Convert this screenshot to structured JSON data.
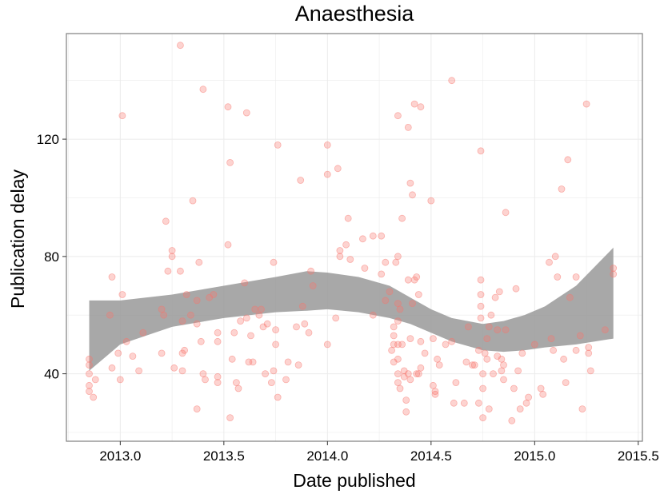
{
  "chart_data": {
    "type": "scatter",
    "title": "Anaesthesia",
    "xlabel": "Date published",
    "ylabel": "Publication delay",
    "xlim": [
      2012.74,
      2015.52
    ],
    "ylim": [
      17,
      156
    ],
    "x_ticks": [
      2013.0,
      2013.5,
      2014.0,
      2014.5,
      2015.0,
      2015.5
    ],
    "x_tick_labels": [
      "2013.0",
      "2013.5",
      "2014.0",
      "2014.5",
      "2015.0",
      "2015.5"
    ],
    "y_ticks": [
      40,
      80,
      120
    ],
    "y_tick_labels": [
      "40",
      "80",
      "120"
    ],
    "grid": true,
    "legend": "none",
    "colors": {
      "points": "#f8766d",
      "band": "#999999",
      "panel_border": "#7f7f7f",
      "grid": "#ebebeb"
    },
    "points": [
      [
        2012.85,
        34
      ],
      [
        2012.85,
        36
      ],
      [
        2012.85,
        40
      ],
      [
        2012.85,
        43
      ],
      [
        2012.85,
        45
      ],
      [
        2012.87,
        32
      ],
      [
        2012.88,
        38
      ],
      [
        2012.95,
        60
      ],
      [
        2012.96,
        42
      ],
      [
        2012.96,
        73
      ],
      [
        2012.99,
        47
      ],
      [
        2013.0,
        38
      ],
      [
        2013.01,
        128
      ],
      [
        2013.01,
        67
      ],
      [
        2013.03,
        51
      ],
      [
        2013.06,
        46
      ],
      [
        2013.09,
        41
      ],
      [
        2013.11,
        54
      ],
      [
        2013.2,
        62
      ],
      [
        2013.2,
        47
      ],
      [
        2013.21,
        60
      ],
      [
        2013.22,
        92
      ],
      [
        2013.23,
        75
      ],
      [
        2013.25,
        82
      ],
      [
        2013.25,
        80
      ],
      [
        2013.26,
        42
      ],
      [
        2013.29,
        152
      ],
      [
        2013.29,
        75
      ],
      [
        2013.3,
        47
      ],
      [
        2013.3,
        41
      ],
      [
        2013.3,
        58
      ],
      [
        2013.31,
        48
      ],
      [
        2013.32,
        67
      ],
      [
        2013.34,
        60
      ],
      [
        2013.35,
        99
      ],
      [
        2013.37,
        57
      ],
      [
        2013.37,
        65
      ],
      [
        2013.37,
        28
      ],
      [
        2013.38,
        78
      ],
      [
        2013.39,
        51
      ],
      [
        2013.4,
        137
      ],
      [
        2013.4,
        40
      ],
      [
        2013.41,
        38
      ],
      [
        2013.43,
        66
      ],
      [
        2013.45,
        67
      ],
      [
        2013.47,
        51
      ],
      [
        2013.47,
        39
      ],
      [
        2013.47,
        37
      ],
      [
        2013.47,
        54
      ],
      [
        2013.52,
        131
      ],
      [
        2013.52,
        84
      ],
      [
        2013.53,
        112
      ],
      [
        2013.53,
        25
      ],
      [
        2013.54,
        45
      ],
      [
        2013.55,
        54
      ],
      [
        2013.56,
        37
      ],
      [
        2013.57,
        35
      ],
      [
        2013.58,
        58
      ],
      [
        2013.6,
        71
      ],
      [
        2013.61,
        129
      ],
      [
        2013.61,
        59
      ],
      [
        2013.62,
        44
      ],
      [
        2013.63,
        53
      ],
      [
        2013.64,
        44
      ],
      [
        2013.65,
        62
      ],
      [
        2013.67,
        60
      ],
      [
        2013.68,
        62
      ],
      [
        2013.69,
        56
      ],
      [
        2013.7,
        40
      ],
      [
        2013.71,
        57
      ],
      [
        2013.73,
        37
      ],
      [
        2013.74,
        41
      ],
      [
        2013.74,
        78
      ],
      [
        2013.75,
        50
      ],
      [
        2013.75,
        55
      ],
      [
        2013.76,
        32
      ],
      [
        2013.76,
        118
      ],
      [
        2013.8,
        38
      ],
      [
        2013.81,
        44
      ],
      [
        2013.85,
        56
      ],
      [
        2013.86,
        43
      ],
      [
        2013.87,
        106
      ],
      [
        2013.88,
        63
      ],
      [
        2013.89,
        57
      ],
      [
        2013.91,
        54
      ],
      [
        2013.92,
        75
      ],
      [
        2013.93,
        70
      ],
      [
        2014.0,
        118
      ],
      [
        2014.0,
        108
      ],
      [
        2014.0,
        50
      ],
      [
        2014.04,
        59
      ],
      [
        2014.05,
        110
      ],
      [
        2014.06,
        82
      ],
      [
        2014.06,
        80
      ],
      [
        2014.09,
        84
      ],
      [
        2014.1,
        93
      ],
      [
        2014.11,
        79
      ],
      [
        2014.17,
        86
      ],
      [
        2014.18,
        76
      ],
      [
        2014.22,
        87
      ],
      [
        2014.22,
        60
      ],
      [
        2014.26,
        87
      ],
      [
        2014.26,
        74
      ],
      [
        2014.28,
        78
      ],
      [
        2014.28,
        65
      ],
      [
        2014.3,
        68
      ],
      [
        2014.31,
        48
      ],
      [
        2014.32,
        50
      ],
      [
        2014.32,
        53
      ],
      [
        2014.32,
        56
      ],
      [
        2014.32,
        44
      ],
      [
        2014.33,
        78
      ],
      [
        2014.34,
        128
      ],
      [
        2014.34,
        80
      ],
      [
        2014.34,
        64
      ],
      [
        2014.34,
        58
      ],
      [
        2014.34,
        50
      ],
      [
        2014.34,
        45
      ],
      [
        2014.34,
        40
      ],
      [
        2014.34,
        37
      ],
      [
        2014.35,
        35
      ],
      [
        2014.35,
        62
      ],
      [
        2014.36,
        93
      ],
      [
        2014.36,
        50
      ],
      [
        2014.37,
        41
      ],
      [
        2014.37,
        39
      ],
      [
        2014.38,
        31
      ],
      [
        2014.38,
        27
      ],
      [
        2014.39,
        124
      ],
      [
        2014.39,
        72
      ],
      [
        2014.39,
        40
      ],
      [
        2014.4,
        105
      ],
      [
        2014.4,
        52
      ],
      [
        2014.4,
        38
      ],
      [
        2014.41,
        101
      ],
      [
        2014.41,
        64
      ],
      [
        2014.42,
        132
      ],
      [
        2014.42,
        72
      ],
      [
        2014.43,
        40
      ],
      [
        2014.43,
        73
      ],
      [
        2014.44,
        67
      ],
      [
        2014.44,
        40
      ],
      [
        2014.45,
        131
      ],
      [
        2014.45,
        51
      ],
      [
        2014.45,
        42
      ],
      [
        2014.47,
        47
      ],
      [
        2014.5,
        99
      ],
      [
        2014.51,
        36
      ],
      [
        2014.51,
        52
      ],
      [
        2014.52,
        34
      ],
      [
        2014.52,
        33
      ],
      [
        2014.53,
        45
      ],
      [
        2014.54,
        43
      ],
      [
        2014.57,
        50
      ],
      [
        2014.6,
        140
      ],
      [
        2014.6,
        51
      ],
      [
        2014.61,
        30
      ],
      [
        2014.62,
        37
      ],
      [
        2014.66,
        30
      ],
      [
        2014.67,
        44
      ],
      [
        2014.68,
        56
      ],
      [
        2014.7,
        43
      ],
      [
        2014.71,
        43
      ],
      [
        2014.73,
        48
      ],
      [
        2014.73,
        30
      ],
      [
        2014.74,
        116
      ],
      [
        2014.74,
        72
      ],
      [
        2014.74,
        67
      ],
      [
        2014.74,
        63
      ],
      [
        2014.74,
        59
      ],
      [
        2014.75,
        40
      ],
      [
        2014.75,
        35
      ],
      [
        2014.75,
        25
      ],
      [
        2014.76,
        47
      ],
      [
        2014.77,
        52
      ],
      [
        2014.77,
        45
      ],
      [
        2014.78,
        28
      ],
      [
        2014.78,
        56
      ],
      [
        2014.79,
        60
      ],
      [
        2014.8,
        40
      ],
      [
        2014.81,
        66
      ],
      [
        2014.82,
        55
      ],
      [
        2014.82,
        46
      ],
      [
        2014.83,
        68
      ],
      [
        2014.84,
        45
      ],
      [
        2014.84,
        41
      ],
      [
        2014.85,
        43
      ],
      [
        2014.85,
        38
      ],
      [
        2014.86,
        95
      ],
      [
        2014.86,
        55
      ],
      [
        2014.89,
        24
      ],
      [
        2014.9,
        35
      ],
      [
        2014.91,
        69
      ],
      [
        2014.92,
        41
      ],
      [
        2014.93,
        28
      ],
      [
        2014.94,
        47
      ],
      [
        2014.96,
        30
      ],
      [
        2014.97,
        32
      ],
      [
        2015.0,
        50
      ],
      [
        2015.03,
        35
      ],
      [
        2015.04,
        33
      ],
      [
        2015.07,
        78
      ],
      [
        2015.08,
        52
      ],
      [
        2015.09,
        48
      ],
      [
        2015.1,
        80
      ],
      [
        2015.11,
        73
      ],
      [
        2015.13,
        103
      ],
      [
        2015.14,
        45
      ],
      [
        2015.15,
        37
      ],
      [
        2015.16,
        113
      ],
      [
        2015.17,
        66
      ],
      [
        2015.2,
        73
      ],
      [
        2015.2,
        48
      ],
      [
        2015.22,
        53
      ],
      [
        2015.23,
        28
      ],
      [
        2015.25,
        132
      ],
      [
        2015.26,
        47
      ],
      [
        2015.26,
        49
      ],
      [
        2015.27,
        41
      ],
      [
        2015.34,
        55
      ],
      [
        2015.38,
        74
      ],
      [
        2015.38,
        76
      ]
    ],
    "smooth_band": {
      "x": [
        2012.85,
        2013.0,
        2013.25,
        2013.5,
        2013.75,
        2013.9,
        2014.0,
        2014.15,
        2014.3,
        2014.4,
        2014.5,
        2014.6,
        2014.75,
        2014.85,
        2014.95,
        2015.05,
        2015.2,
        2015.38
      ],
      "upper": [
        65,
        65,
        67,
        70,
        73,
        75,
        74.5,
        73,
        70,
        66,
        62,
        59,
        57,
        58,
        60,
        63,
        70,
        83
      ],
      "lower": [
        41,
        50,
        56,
        59,
        61,
        61.5,
        62,
        61,
        59,
        57,
        54,
        51,
        48,
        47.5,
        48,
        49,
        50,
        52
      ]
    }
  }
}
